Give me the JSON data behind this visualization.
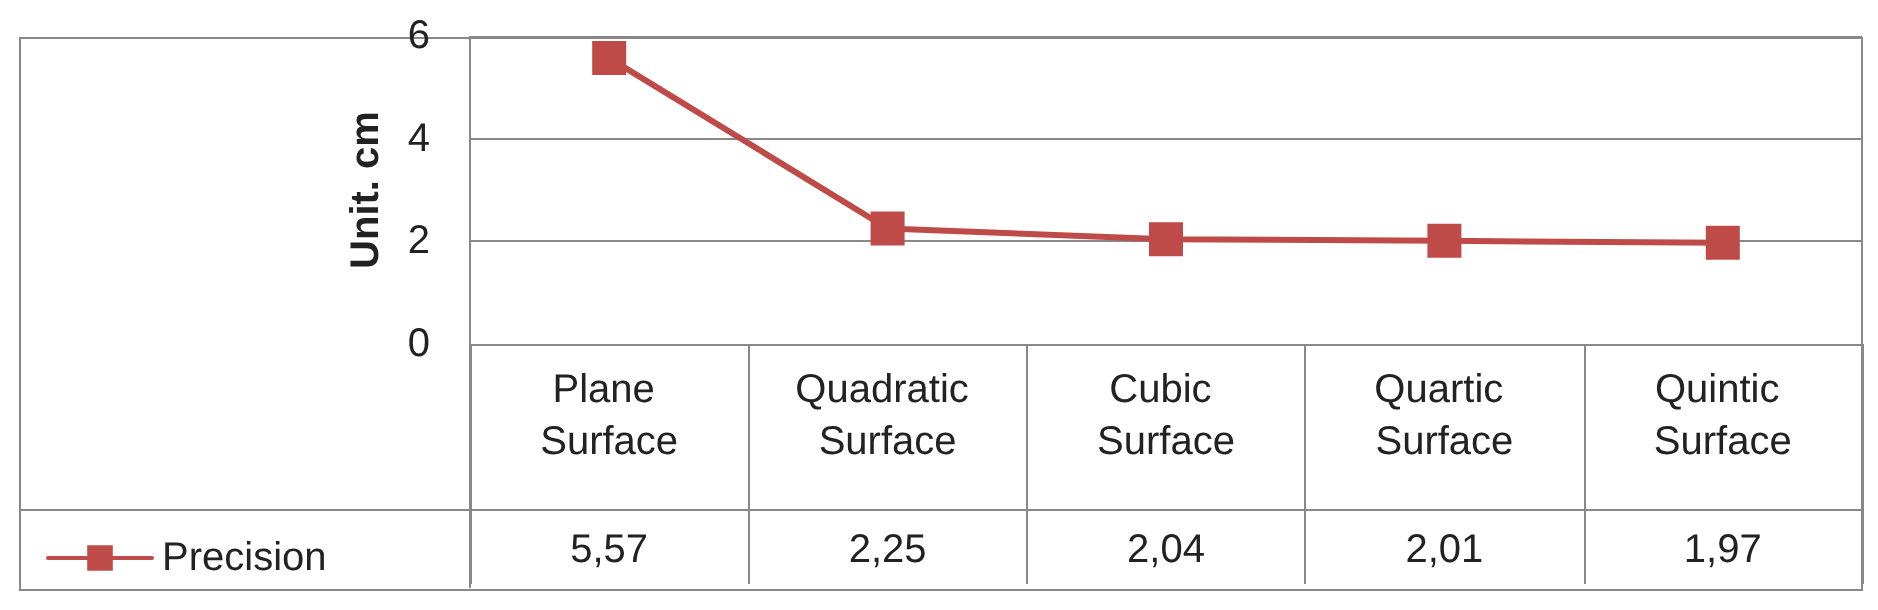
{
  "chart_data": {
    "type": "line",
    "ylabel": "Unit. cm",
    "categories": [
      "Plane Surface",
      "Quadratic Surface",
      "Cubic Surface",
      "Quartic Surface",
      "Quintic Surface"
    ],
    "series": [
      {
        "name": "Precision",
        "color": "#be4b48",
        "values": [
          5.57,
          2.25,
          2.04,
          2.01,
          1.97
        ],
        "value_labels": [
          "5,57",
          "2,25",
          "2,04",
          "2,01",
          "1,97"
        ]
      }
    ],
    "ylim": [
      0,
      6
    ],
    "yticks": [
      0,
      2,
      4,
      6
    ],
    "grid": "y",
    "legend": "bottom left",
    "marker": "square",
    "line_style": "solid"
  }
}
